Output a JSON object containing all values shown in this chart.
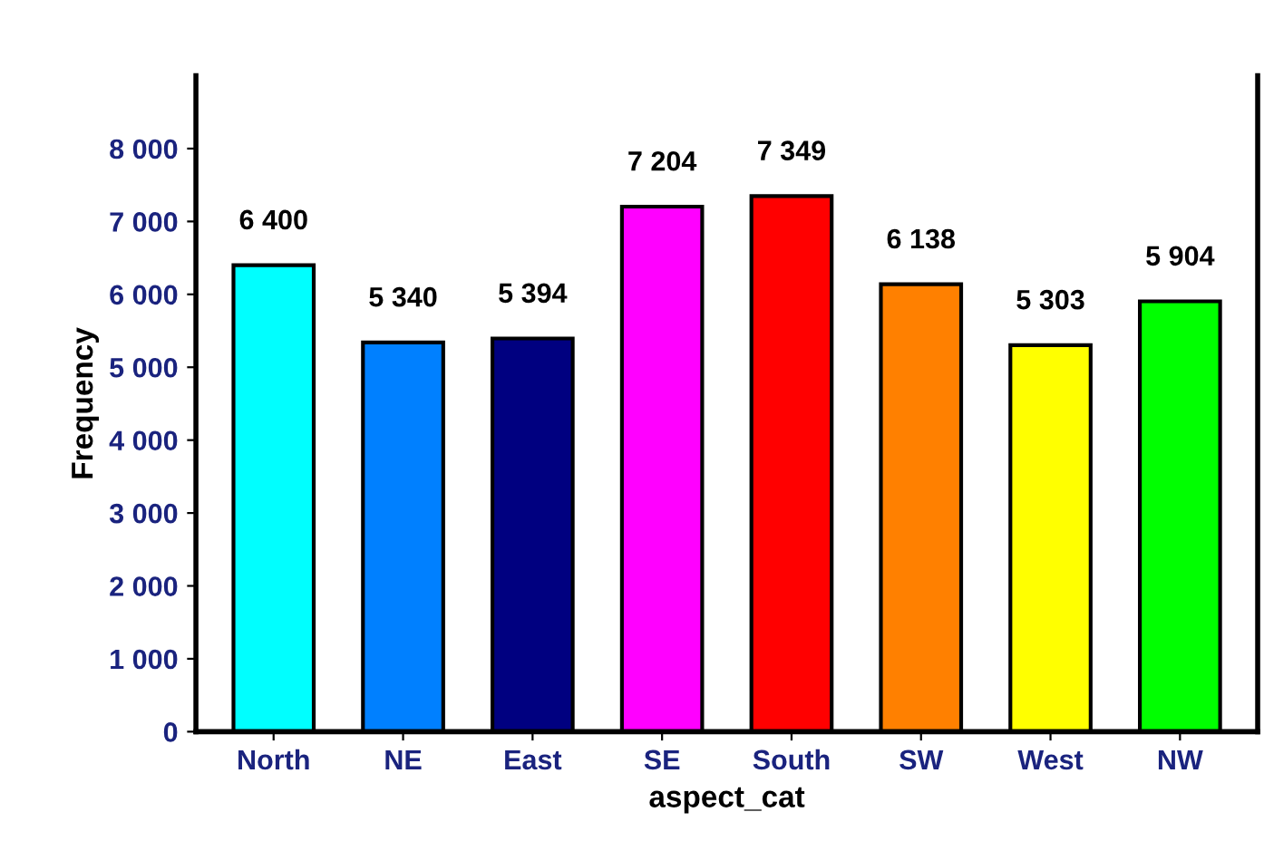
{
  "chart_data": {
    "type": "bar",
    "xlabel": "aspect_cat",
    "ylabel": "Frequency",
    "categories": [
      "North",
      "NE",
      "East",
      "SE",
      "South",
      "SW",
      "West",
      "NW"
    ],
    "values": [
      6400,
      5340,
      5394,
      7204,
      7349,
      6138,
      5303,
      5904
    ],
    "colors": [
      "#00ffff",
      "#0080ff",
      "#000080",
      "#ff00ff",
      "#ff0000",
      "#ff8000",
      "#ffff00",
      "#00ff00"
    ],
    "value_labels": [
      "6 400",
      "5 340",
      "5 394",
      "7 204",
      "7 349",
      "6 138",
      "5 303",
      "5 904"
    ],
    "ylim": [
      0,
      9000
    ],
    "yticks": [
      0,
      {
        "value": 1000,
        "label": "1 000"
      },
      {
        "value": 2000,
        "label": "2 000"
      },
      {
        "value": 3000,
        "label": "3 000"
      },
      {
        "value": 4000,
        "label": "4 000"
      },
      {
        "value": 5000,
        "label": "5 000"
      },
      {
        "value": 6000,
        "label": "6 000"
      },
      {
        "value": 7000,
        "label": "7 000"
      },
      {
        "value": 8000,
        "label": "8 000"
      }
    ],
    "grid": false
  }
}
